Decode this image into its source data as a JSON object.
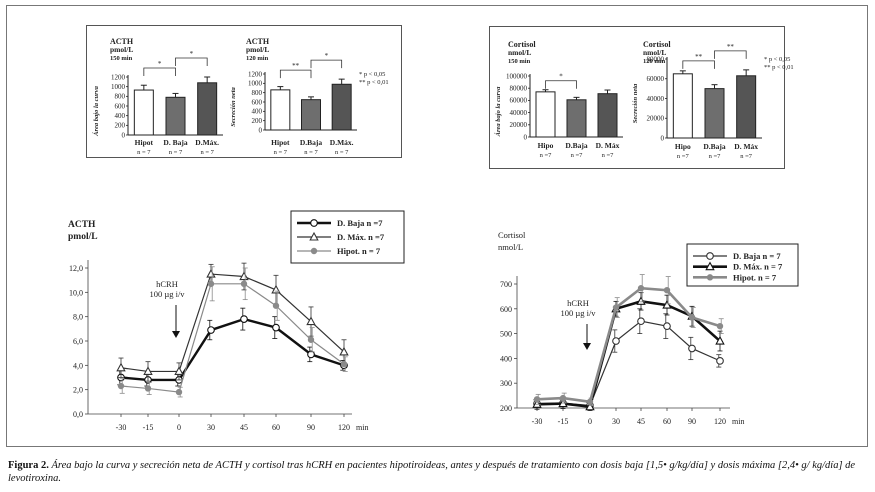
{
  "caption": {
    "label": "Figura 2.",
    "text": "Área bajo la curva y secreción neta de ACTH y cortisol tras hCRH en pacientes hipotiroideas, antes y después de tratamiento con dosis baja [1,5• g/kg/día] y dosis máxima [2,4• g/ kg/día] de levotiroxina."
  },
  "colors": {
    "d_baja": "#111111",
    "d_max": "#555555",
    "hipot": "#8a8a8a"
  },
  "chart_data": [
    {
      "id": "acth-auc",
      "type": "bar",
      "title": "ACTH",
      "unit": "pmol/L",
      "subtitle": "150 min",
      "ylabel": "Área bajo la curva",
      "ylim": [
        0,
        1200
      ],
      "yticks": [
        "0",
        "200",
        "400",
        "600",
        "800",
        "1000",
        "1200"
      ],
      "categories": [
        "Hipot",
        "D. Baja",
        "D.Máx."
      ],
      "category_n": [
        "n = 7",
        "n = 7",
        "n = 7"
      ],
      "values": [
        930,
        780,
        1080
      ],
      "errors": [
        100,
        80,
        120
      ],
      "fills": [
        "#ffffff",
        "#6e6e6e",
        "#555555"
      ],
      "significance": [
        {
          "from": 0,
          "to": 1,
          "label": "*"
        },
        {
          "from": 1,
          "to": 2,
          "label": "*"
        }
      ]
    },
    {
      "id": "acth-net",
      "type": "bar",
      "title": "ACTH",
      "unit": "pmol/L",
      "subtitle": "120 min",
      "ylabel": "Secreción neta",
      "ylim": [
        0,
        1200
      ],
      "yticks": [
        "0",
        "200",
        "400",
        "600",
        "800",
        "1000",
        "1200"
      ],
      "categories": [
        "Hipot",
        "D.Baja",
        "D.Máx."
      ],
      "category_n": [
        "n = 7",
        "n = 7",
        "n = 7"
      ],
      "values": [
        860,
        650,
        980
      ],
      "errors": [
        70,
        60,
        110
      ],
      "fills": [
        "#ffffff",
        "#6e6e6e",
        "#555555"
      ],
      "significance": [
        {
          "from": 0,
          "to": 1,
          "label": "**"
        },
        {
          "from": 1,
          "to": 2,
          "label": "*"
        }
      ],
      "legend": [
        "* p < 0,05",
        "** p < 0,01"
      ]
    },
    {
      "id": "cortisol-auc",
      "type": "bar",
      "title": "Cortisol",
      "unit": "nmol/L",
      "subtitle": "150 min",
      "ylabel": "Área bajo la curva",
      "ylim": [
        0,
        100000
      ],
      "yticks": [
        "0",
        "20000",
        "40000",
        "60000",
        "80000",
        "100000"
      ],
      "categories": [
        "Hipo",
        "D.Baja",
        "D. Máx"
      ],
      "category_n": [
        "n =7",
        "n =7",
        "n =7"
      ],
      "values": [
        74000,
        61000,
        71000
      ],
      "errors": [
        3500,
        4000,
        6000
      ],
      "fills": [
        "#ffffff",
        "#6e6e6e",
        "#555555"
      ],
      "significance": [
        {
          "from": 0,
          "to": 1,
          "label": "*"
        }
      ]
    },
    {
      "id": "cortisol-net",
      "type": "bar",
      "title": "Cortisol",
      "unit": "nmol/L",
      "subtitle": "120 min",
      "ylabel": "Secreción neta",
      "ylim": [
        0,
        80000
      ],
      "yticks": [
        "0",
        "20000",
        "40000",
        "60000",
        "80000"
      ],
      "categories": [
        "Hipo",
        "D.Baja",
        "D. Máx"
      ],
      "category_n": [
        "n =7",
        "n =7",
        "n =7"
      ],
      "values": [
        65000,
        50000,
        63000
      ],
      "errors": [
        3000,
        4000,
        6000
      ],
      "fills": [
        "#ffffff",
        "#6e6e6e",
        "#555555"
      ],
      "significance": [
        {
          "from": 0,
          "to": 1,
          "label": "**"
        },
        {
          "from": 1,
          "to": 2,
          "label": "**"
        }
      ],
      "legend": [
        "* p < 0,05",
        "** p < 0,01"
      ]
    },
    {
      "id": "acth-time",
      "type": "line",
      "title": "ACTH",
      "ylabel": "pmol/L",
      "xlabel": "min",
      "x": [
        -30,
        -15,
        0,
        30,
        45,
        60,
        90,
        120
      ],
      "xticks": [
        "-30",
        "-15",
        "0",
        "30",
        "45",
        "60",
        "90",
        "120"
      ],
      "ylim": [
        0,
        12
      ],
      "yticks": [
        "0,0",
        "2,0",
        "4,0",
        "6,0",
        "8,0",
        "10,0",
        "12,0"
      ],
      "annotation": {
        "line1": "hCRH",
        "line2": "100 µg i/v",
        "x": 0
      },
      "series": [
        {
          "name": "D. Baja  n =7",
          "marker": "circle",
          "width": 2.4,
          "color": "#111111",
          "values": [
            3.0,
            2.8,
            2.8,
            6.9,
            7.8,
            7.1,
            4.9,
            4.0
          ],
          "errors": [
            0.6,
            0.5,
            0.5,
            0.8,
            0.9,
            0.9,
            0.6,
            0.4
          ]
        },
        {
          "name": "D. Máx.  n =7",
          "marker": "triangle",
          "width": 1.2,
          "color": "#333333",
          "values": [
            3.8,
            3.5,
            3.5,
            11.5,
            11.3,
            10.2,
            7.6,
            5.1
          ],
          "errors": [
            0.8,
            0.8,
            0.7,
            0.8,
            1.1,
            1.2,
            1.2,
            1.0
          ]
        },
        {
          "name": "Hipot.   n = 7",
          "marker": "dot",
          "width": 1.2,
          "color": "#8a8a8a",
          "values": [
            2.3,
            2.1,
            1.8,
            10.7,
            10.7,
            8.9,
            6.1,
            4.1
          ],
          "errors": [
            0.6,
            0.5,
            0.4,
            1.4,
            1.3,
            1.2,
            1.0,
            0.6
          ]
        }
      ]
    },
    {
      "id": "cortisol-time",
      "type": "line",
      "title": "Cortisol",
      "ylabel": "nmol/L",
      "xlabel": "min",
      "x": [
        -30,
        -15,
        0,
        30,
        45,
        60,
        90,
        120
      ],
      "xticks": [
        "-30",
        "-15",
        "0",
        "30",
        "45",
        "60",
        "90",
        "120"
      ],
      "ylim": [
        200,
        700
      ],
      "yticks": [
        "200",
        "300",
        "400",
        "500",
        "600",
        "700"
      ],
      "annotation": {
        "line1": "hCRH",
        "line2": "100 µg i/v",
        "x": 0
      },
      "series": [
        {
          "name": "D. Baja  n = 7",
          "marker": "circle",
          "width": 1.2,
          "color": "#333333",
          "values": [
            218,
            220,
            210,
            470,
            550,
            530,
            440,
            390
          ],
          "errors": [
            15,
            15,
            12,
            45,
            50,
            50,
            45,
            25
          ]
        },
        {
          "name": "D. Máx.  n = 7",
          "marker": "triangle",
          "width": 2.6,
          "color": "#111111",
          "values": [
            215,
            218,
            205,
            600,
            630,
            615,
            570,
            470
          ],
          "errors": [
            20,
            20,
            15,
            30,
            35,
            40,
            40,
            40
          ]
        },
        {
          "name": "Hipot.    n = 7",
          "marker": "dot",
          "width": 2.6,
          "color": "#8a8a8a",
          "values": [
            235,
            240,
            225,
            605,
            683,
            675,
            565,
            530
          ],
          "errors": [
            20,
            20,
            15,
            40,
            55,
            55,
            40,
            30
          ]
        }
      ]
    }
  ]
}
